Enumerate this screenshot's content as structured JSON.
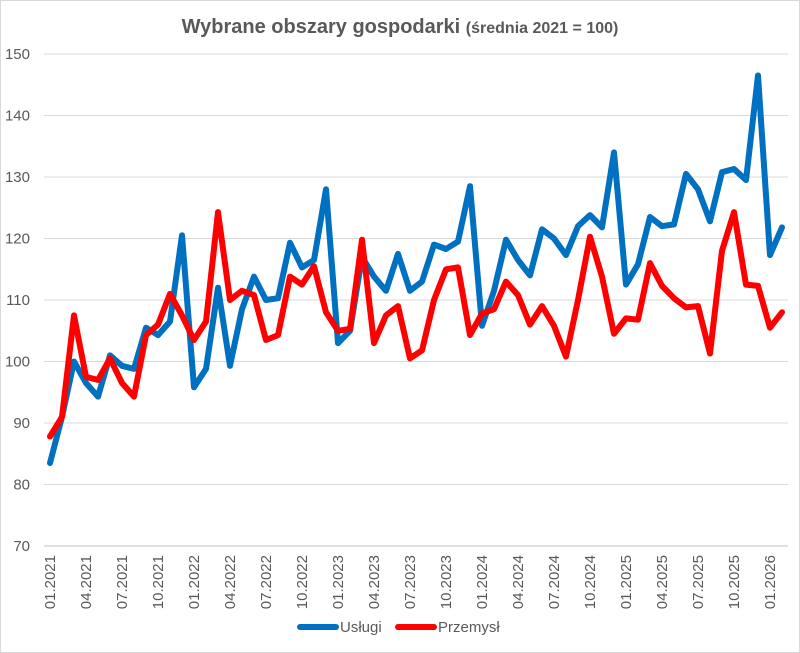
{
  "chart_data": {
    "type": "line",
    "title": "Wybrane obszary gospodarki",
    "subtitle": "(średnia 2021 = 100)",
    "ylim": [
      70,
      150
    ],
    "yticks": [
      70,
      80,
      90,
      100,
      110,
      120,
      130,
      140,
      150
    ],
    "grid": true,
    "legend_position": "bottom",
    "x": [
      "01.2021",
      "02.2021",
      "03.2021",
      "04.2021",
      "05.2021",
      "06.2021",
      "07.2021",
      "08.2021",
      "09.2021",
      "10.2021",
      "11.2021",
      "12.2021",
      "01.2022",
      "02.2022",
      "03.2022",
      "04.2022",
      "05.2022",
      "06.2022",
      "07.2022",
      "08.2022",
      "09.2022",
      "10.2022",
      "11.2022",
      "12.2022",
      "01.2023",
      "02.2023",
      "03.2023",
      "04.2023",
      "05.2023",
      "06.2023",
      "07.2023",
      "08.2023",
      "09.2023",
      "10.2023",
      "11.2023",
      "12.2023",
      "01.2024",
      "02.2024",
      "03.2024",
      "04.2024",
      "05.2024",
      "06.2024",
      "07.2024",
      "08.2024",
      "09.2024",
      "10.2024",
      "11.2024",
      "12.2024",
      "01.2025",
      "02.2025",
      "03.2025",
      "04.2025",
      "05.2025",
      "06.2025",
      "07.2025",
      "08.2025",
      "09.2025",
      "10.2025",
      "11.2025",
      "12.2025",
      "01.2026",
      "02.2026"
    ],
    "tick_labels": [
      "01.2021",
      "04.2021",
      "07.2021",
      "10.2021",
      "01.2022",
      "04.2022",
      "07.2022",
      "10.2022",
      "01.2023",
      "04.2023",
      "07.2023",
      "10.2023",
      "01.2024",
      "04.2024",
      "07.2024",
      "10.2024",
      "01.2025",
      "04.2025",
      "07.2025",
      "10.2025",
      "01.2026"
    ],
    "series": [
      {
        "name": "Usługi",
        "color": "#0070c0",
        "values": [
          83.5,
          91.0,
          100.0,
          96.5,
          94.3,
          101.0,
          99.3,
          98.8,
          105.5,
          104.3,
          106.5,
          120.5,
          95.8,
          98.8,
          112.0,
          99.3,
          108.5,
          113.8,
          110.0,
          110.3,
          119.3,
          115.3,
          116.5,
          128.0,
          103.0,
          105.0,
          117.0,
          113.8,
          111.5,
          117.5,
          111.5,
          113.0,
          119.0,
          118.3,
          119.5,
          128.5,
          105.8,
          111.5,
          119.8,
          116.5,
          114.0,
          121.5,
          120.0,
          117.3,
          122.0,
          123.8,
          121.8,
          134.0,
          112.5,
          115.8,
          123.5,
          122.0,
          122.3,
          130.5,
          128.0,
          122.8,
          130.8,
          131.3,
          129.5,
          146.5,
          117.3,
          121.8
        ]
      },
      {
        "name": "Przemysł",
        "color": "#ff0000",
        "values": [
          87.8,
          91.0,
          107.5,
          97.5,
          97.0,
          100.5,
          96.5,
          94.3,
          104.3,
          106.0,
          111.0,
          107.5,
          103.5,
          106.5,
          124.3,
          110.0,
          111.5,
          110.8,
          103.5,
          104.3,
          113.8,
          112.5,
          115.5,
          108.0,
          105.0,
          105.3,
          119.8,
          103.0,
          107.5,
          109.0,
          100.5,
          101.8,
          110.0,
          115.0,
          115.3,
          104.3,
          107.8,
          108.5,
          113.0,
          110.8,
          106.0,
          109.0,
          105.8,
          100.8,
          110.0,
          120.3,
          113.8,
          104.5,
          107.0,
          106.8,
          116.0,
          112.3,
          110.3,
          108.8,
          109.0,
          101.3,
          118.0,
          124.3,
          112.5,
          112.3,
          105.5,
          108.0
        ]
      }
    ]
  }
}
